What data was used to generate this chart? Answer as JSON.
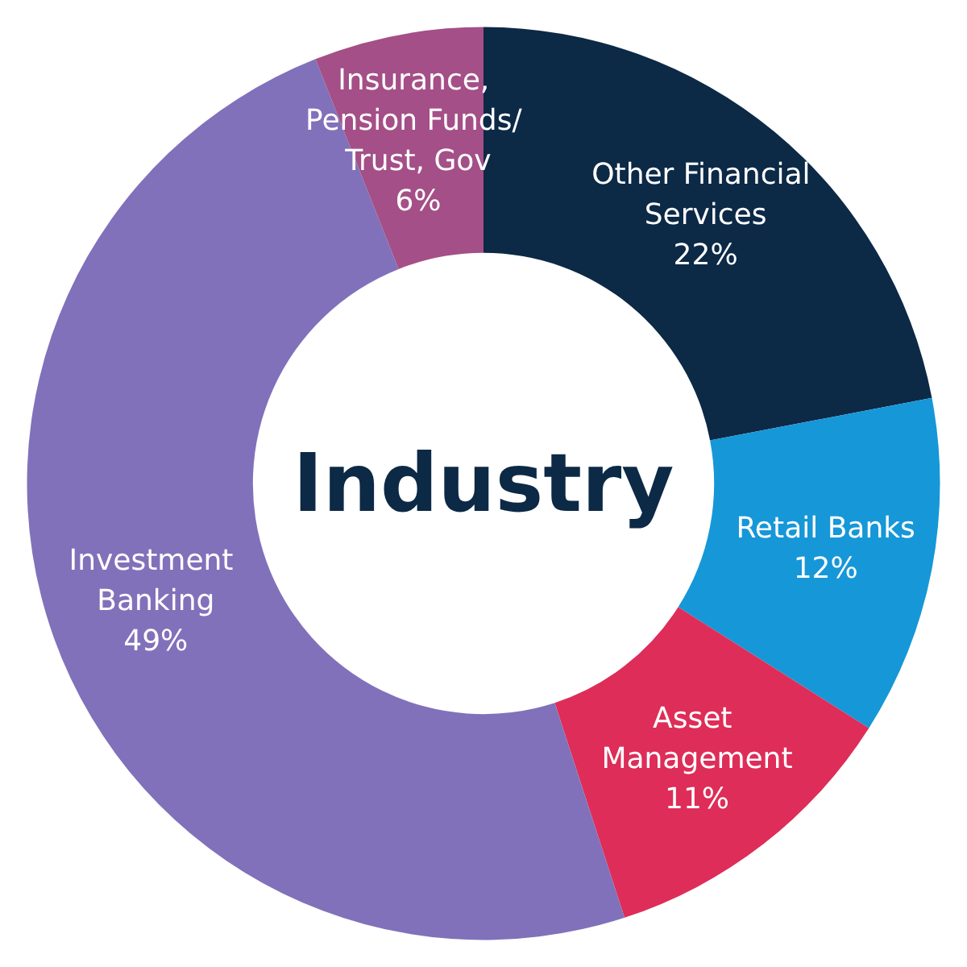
{
  "chart_data": {
    "type": "donut",
    "title": "Industry",
    "categories": [
      "Other Financial Services",
      "Retail Banks",
      "Asset Management",
      "Investment Banking",
      "Insurance, Pension Funds/ Trust, Gov"
    ],
    "values": [
      22,
      12,
      11,
      49,
      6
    ],
    "value_labels": [
      "22%",
      "12%",
      "11%",
      "49%",
      "6%"
    ],
    "colors": [
      "#0c2946",
      "#1697d8",
      "#de2d58",
      "#8171ba",
      "#a44f87"
    ],
    "legend": false
  }
}
